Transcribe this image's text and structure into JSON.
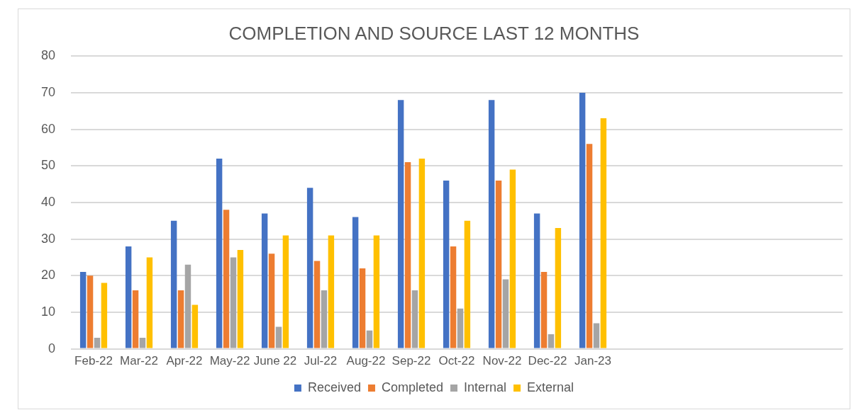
{
  "chart_data": {
    "type": "bar",
    "title": "COMPLETION AND SOURCE LAST 12 MONTHS",
    "categories": [
      "Feb-22",
      "Mar-22",
      "Apr-22",
      "May-22",
      "June 22",
      "Jul-22",
      "Aug-22",
      "Sep-22",
      "Oct-22",
      "Nov-22",
      "Dec-22",
      "Jan-23",
      null,
      null,
      null,
      null,
      null
    ],
    "series": [
      {
        "name": "Received",
        "color": "#4472c4",
        "values": [
          21,
          28,
          35,
          52,
          37,
          44,
          36,
          68,
          46,
          68,
          37,
          70,
          null,
          null,
          null,
          null,
          null
        ]
      },
      {
        "name": "Completed",
        "color": "#ed7d31",
        "values": [
          20,
          16,
          16,
          38,
          26,
          24,
          22,
          51,
          28,
          46,
          21,
          56,
          null,
          null,
          null,
          null,
          null
        ]
      },
      {
        "name": "Internal",
        "color": "#a5a5a5",
        "values": [
          3,
          3,
          23,
          25,
          6,
          16,
          5,
          16,
          11,
          19,
          4,
          7,
          null,
          null,
          null,
          null,
          null
        ]
      },
      {
        "name": "External",
        "color": "#ffc000",
        "values": [
          18,
          25,
          12,
          27,
          31,
          31,
          31,
          52,
          35,
          49,
          33,
          63,
          null,
          null,
          null,
          null,
          null
        ]
      }
    ],
    "ylim": [
      0,
      80
    ],
    "yticks": [
      0,
      10,
      20,
      30,
      40,
      50,
      60,
      70,
      80
    ],
    "grid": "y",
    "legend": "bottom"
  }
}
